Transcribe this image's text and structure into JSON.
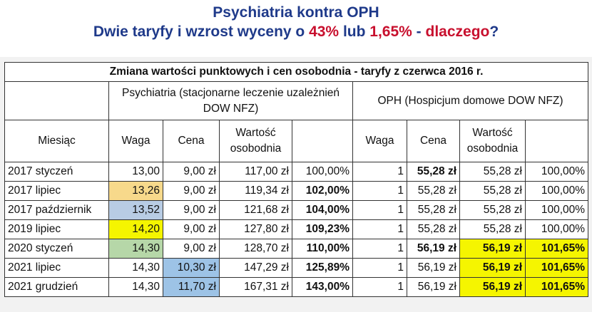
{
  "title": {
    "line1": "Psychiatria kontra OPH",
    "line2_a": "Dwie taryfy i wzrost wyceny o ",
    "line2_b": "43%",
    "line2_c": " lub ",
    "line2_d": "1,65%",
    "line2_e": " - ",
    "line2_f": "dlaczego",
    "line2_g": "?"
  },
  "table": {
    "caption": "Zmiana wartości punktowych i cen osobodnia - taryfy z czerwca 2016 r.",
    "group_psych_1": "Psychiatria (stacjonarne leczenie uzależnień",
    "group_psych_2": "DOW NFZ)",
    "group_oph": "OPH (Hospicjum domowe DOW NFZ)",
    "headers": {
      "month": "Miesiąc",
      "waga": "Waga",
      "cena": "Cena",
      "wartosc_1": "Wartość",
      "wartosc_2": "osobodnia",
      "waga2": "Waga",
      "cena2": "Cena",
      "wartosc2_1": "Wartość",
      "wartosc2_2": "osobodnia"
    },
    "rows": [
      [
        "2017 styczeń",
        "13,00",
        "9,00 zł",
        "117,00 zł",
        "100,00%",
        "1",
        "55,28 zł",
        "55,28 zł",
        "100,00%"
      ],
      [
        "2017 lipiec",
        "13,26",
        "9,00 zł",
        "119,34 zł",
        "102,00%",
        "1",
        "55,28 zł",
        "55,28 zł",
        "100,00%"
      ],
      [
        "2017 październik",
        "13,52",
        "9,00 zł",
        "121,68 zł",
        "104,00%",
        "1",
        "55,28 zł",
        "55,28 zł",
        "100,00%"
      ],
      [
        "2019 lipiec",
        "14,20",
        "9,00 zł",
        "127,80 zł",
        "109,23%",
        "1",
        "55,28 zł",
        "55,28 zł",
        "100,00%"
      ],
      [
        "2020 styczeń",
        "14,30",
        "9,00 zł",
        "128,70 zł",
        "110,00%",
        "1",
        "56,19 zł",
        "56,19 zł",
        "101,65%"
      ],
      [
        "2021 lipiec",
        "14,30",
        "10,30 zł",
        "147,29 zł",
        "125,89%",
        "1",
        "56,19 zł",
        "56,19 zł",
        "101,65%"
      ],
      [
        "2021 grudzień",
        "14,30",
        "11,70 zł",
        "167,31 zł",
        "143,00%",
        "1",
        "56,19 zł",
        "56,19 zł",
        "101,65%"
      ]
    ]
  },
  "colors": {
    "title_blue": "#1f3a8a",
    "title_red": "#c8102e",
    "highlight_orange": "#f7d98b",
    "highlight_blue": "#b8cce4",
    "highlight_yellow": "#f5f500",
    "highlight_green": "#b6d7a8",
    "highlight_steel": "#9dc3e6"
  }
}
